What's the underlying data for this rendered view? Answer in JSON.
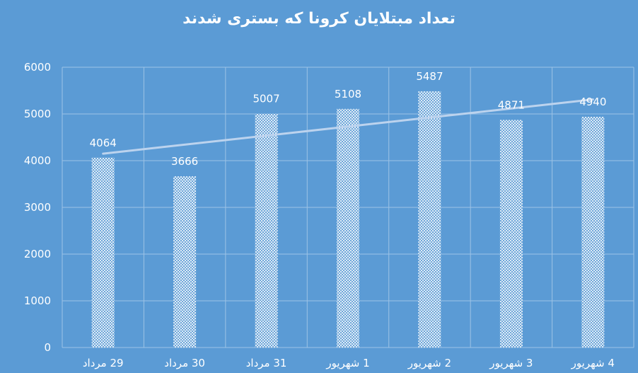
{
  "chart_data": {
    "type": "bar",
    "title": "تعداد مبتلایان کرونا که بستری شدند",
    "categories": [
      "29 مرداد",
      "30 مرداد",
      "31 مرداد",
      "1 شهریور",
      "2 شهریور",
      "3 شهریور",
      "4 شهریور"
    ],
    "values": [
      4064,
      3666,
      5007,
      5108,
      5487,
      4871,
      4940
    ],
    "data_labels": [
      "4064",
      "3666",
      "5007",
      "5108",
      "5487",
      "4871",
      "4940"
    ],
    "y_ticks": [
      0,
      1000,
      2000,
      3000,
      4000,
      5000,
      6000
    ],
    "ylim": [
      0,
      6000
    ],
    "xlabel": "",
    "ylabel": "",
    "grid": true,
    "trendline": {
      "type": "linear",
      "start": 4150,
      "end": 5310
    },
    "colors": {
      "background": "#5b9bd5",
      "bar_fill": "#ffffff",
      "bar_hatch": "#5b9bd5",
      "trendline": "#bcd3ee",
      "grid": "#9dc3e6",
      "text": "#ffffff"
    }
  }
}
